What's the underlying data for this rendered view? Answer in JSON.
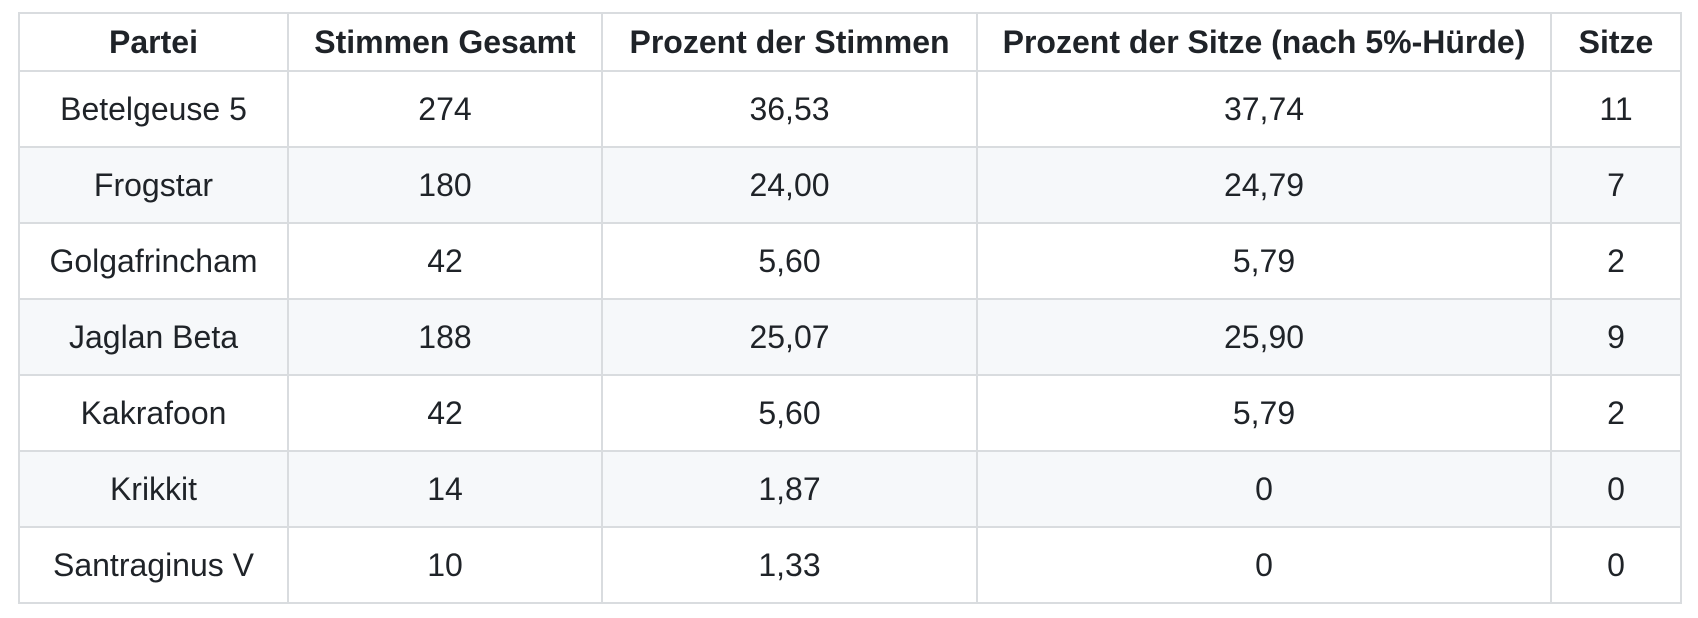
{
  "table": {
    "columns": [
      "Partei",
      "Stimmen Gesamt",
      "Prozent der Stimmen",
      "Prozent der Sitze (nach 5%-Hürde)",
      "Sitze"
    ],
    "rows": [
      [
        "Betelgeuse 5",
        "274",
        "36,53",
        "37,74",
        "11"
      ],
      [
        "Frogstar",
        "180",
        "24,00",
        "24,79",
        "7"
      ],
      [
        "Golgafrincham",
        "42",
        "5,60",
        "5,79",
        "2"
      ],
      [
        "Jaglan Beta",
        "188",
        "25,07",
        "25,90",
        "9"
      ],
      [
        "Kakrafoon",
        "42",
        "5,60",
        "5,79",
        "2"
      ],
      [
        "Krikkit",
        "14",
        "1,87",
        "0",
        "0"
      ],
      [
        "Santraginus V",
        "10",
        "1,33",
        "0",
        "0"
      ]
    ]
  },
  "colors": {
    "text": "#1f2328",
    "border": "#d9dcdf",
    "stripe": "#f6f8fa",
    "background": "#ffffff"
  }
}
